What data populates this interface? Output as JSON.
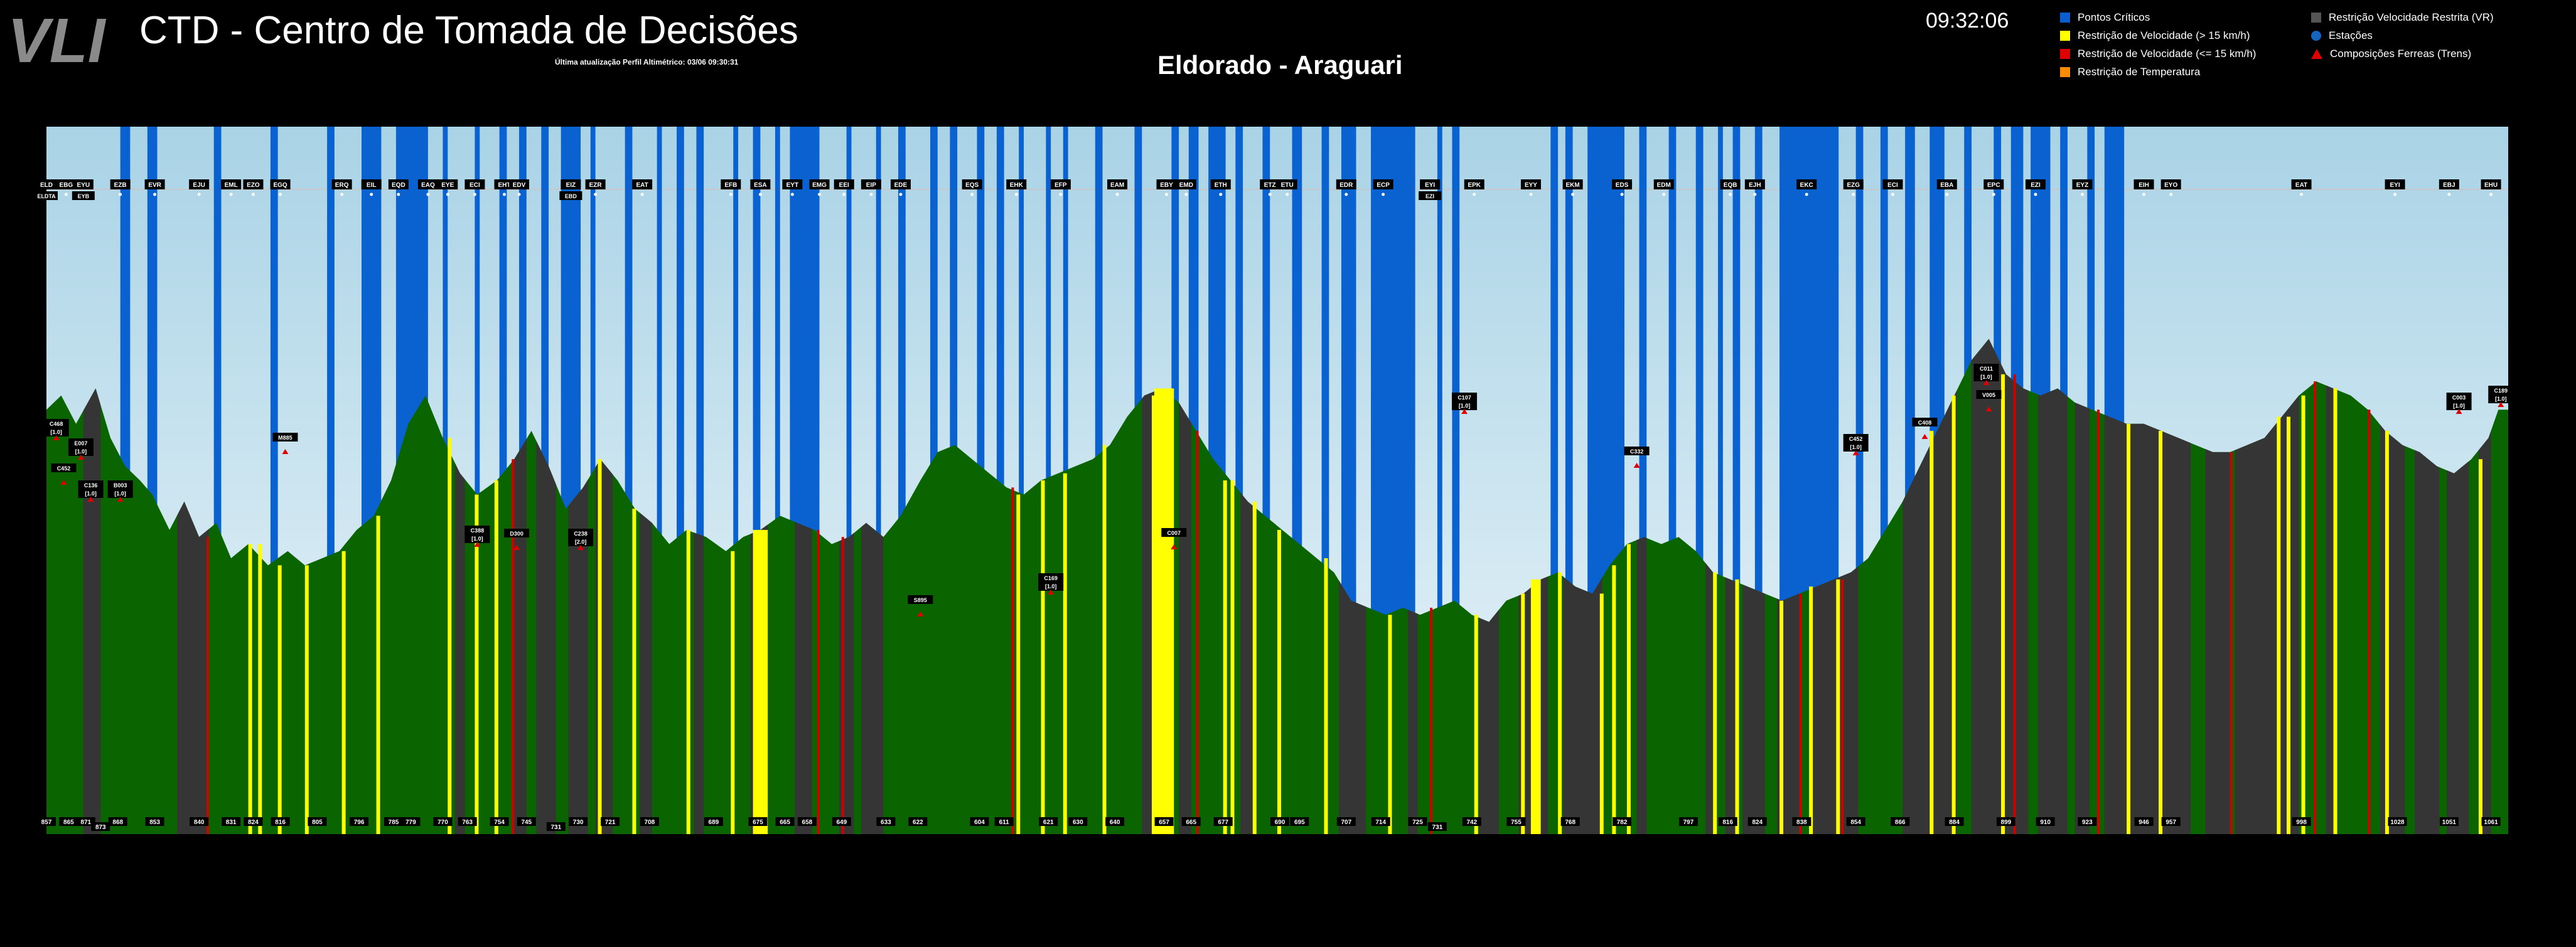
{
  "header": {
    "logo_text": "VLI",
    "title": "CTD - Centro de Tomada de Decisões",
    "last_update": "Última atualização Perfil Altimétrico: 03/06 09:30:31",
    "route": "Eldorado - Araguari",
    "clock": "09:32:06"
  },
  "legend": {
    "pontos_criticos": {
      "label": "Pontos Críticos",
      "color": "#0a5fd0"
    },
    "rv_maior15": {
      "label": "Restrição de Velocidade (> 15 km/h)",
      "color": "#ffff00"
    },
    "rv_menor15": {
      "label": "Restrição de Velocidade (<= 15 km/h)",
      "color": "#e00000"
    },
    "temperatura": {
      "label": "Restrição de Temperatura",
      "color": "#ff8c00"
    },
    "vel_restrita": {
      "label": "Restrição Velocidade Restrita (VR)",
      "color": "#555555"
    },
    "estacoes": {
      "label": "Estações",
      "color": "#1565c0"
    },
    "composicoes": {
      "label": "Composições Ferreas (Trens)",
      "color": "#e00000"
    }
  },
  "colors": {
    "terrain": "#0a6400",
    "restricted_terrain": "#353535",
    "sky_top": "#a9d3e6",
    "sky_bottom": "#e8f3f9",
    "critical": "#0a62d1",
    "speed_gt15": "#ffff00",
    "speed_le15": "#d00000"
  },
  "elevation_profile": {
    "description_km": "distance along route from 857 to 1061",
    "y_range": [
      0,
      100
    ],
    "points": [
      [
        0,
        60
      ],
      [
        0.6,
        62
      ],
      [
        1.2,
        58
      ],
      [
        2,
        63
      ],
      [
        2.6,
        56
      ],
      [
        3.2,
        52
      ],
      [
        3.8,
        50
      ],
      [
        4.3,
        48
      ],
      [
        5,
        43
      ],
      [
        5.6,
        47
      ],
      [
        6.2,
        42
      ],
      [
        6.9,
        44
      ],
      [
        7.5,
        39
      ],
      [
        8.2,
        41
      ],
      [
        9,
        38
      ],
      [
        9.8,
        40
      ],
      [
        10.5,
        38
      ],
      [
        11.2,
        39
      ],
      [
        11.9,
        40
      ],
      [
        12.6,
        43
      ],
      [
        13.3,
        45
      ],
      [
        14,
        50
      ],
      [
        14.7,
        58
      ],
      [
        15.4,
        62
      ],
      [
        16.1,
        56
      ],
      [
        16.8,
        51
      ],
      [
        17.5,
        48
      ],
      [
        18.3,
        50
      ],
      [
        19,
        53
      ],
      [
        19.7,
        57
      ],
      [
        20.4,
        52
      ],
      [
        21.1,
        46
      ],
      [
        21.8,
        49
      ],
      [
        22.5,
        53
      ],
      [
        23.2,
        50
      ],
      [
        23.9,
        46
      ],
      [
        24.6,
        44
      ],
      [
        25.3,
        41
      ],
      [
        26,
        43
      ],
      [
        26.8,
        42
      ],
      [
        27.6,
        40
      ],
      [
        28.3,
        42
      ],
      [
        29,
        43
      ],
      [
        29.8,
        45
      ],
      [
        30.5,
        44
      ],
      [
        31.2,
        43
      ],
      [
        31.9,
        41
      ],
      [
        32.6,
        42
      ],
      [
        33.3,
        44
      ],
      [
        34,
        42
      ],
      [
        34.7,
        45
      ],
      [
        35.5,
        50
      ],
      [
        36.2,
        54
      ],
      [
        36.9,
        55
      ],
      [
        37.6,
        53
      ],
      [
        38.3,
        51
      ],
      [
        39,
        49
      ],
      [
        39.7,
        48
      ],
      [
        40.4,
        50
      ],
      [
        41.1,
        51
      ],
      [
        41.8,
        52
      ],
      [
        42.5,
        53
      ],
      [
        43.2,
        55
      ],
      [
        43.9,
        59
      ],
      [
        44.6,
        62
      ],
      [
        45.3,
        63
      ],
      [
        46,
        61
      ],
      [
        46.7,
        57
      ],
      [
        47.4,
        53
      ],
      [
        48.1,
        50
      ],
      [
        48.8,
        47
      ],
      [
        49.5,
        45
      ],
      [
        50.2,
        43
      ],
      [
        50.9,
        41
      ],
      [
        51.6,
        39
      ],
      [
        52.3,
        37
      ],
      [
        53,
        33
      ],
      [
        53.7,
        32
      ],
      [
        54.4,
        31
      ],
      [
        55.1,
        32
      ],
      [
        55.8,
        31
      ],
      [
        56.5,
        32
      ],
      [
        57.2,
        33
      ],
      [
        57.9,
        31
      ],
      [
        58.6,
        30
      ],
      [
        59.3,
        33
      ],
      [
        60,
        34
      ],
      [
        60.7,
        36
      ],
      [
        61.4,
        37
      ],
      [
        62.1,
        35
      ],
      [
        62.8,
        34
      ],
      [
        63.5,
        38
      ],
      [
        64.2,
        41
      ],
      [
        64.9,
        42
      ],
      [
        65.6,
        41
      ],
      [
        66.3,
        42
      ],
      [
        67,
        40
      ],
      [
        67.7,
        37
      ],
      [
        68.4,
        36
      ],
      [
        69.1,
        35
      ],
      [
        69.8,
        34
      ],
      [
        70.5,
        33
      ],
      [
        71.2,
        34
      ],
      [
        71.9,
        35
      ],
      [
        72.6,
        36
      ],
      [
        73.3,
        37
      ],
      [
        74,
        39
      ],
      [
        74.7,
        43
      ],
      [
        75.4,
        47
      ],
      [
        76.1,
        52
      ],
      [
        76.8,
        57
      ],
      [
        77.5,
        62
      ],
      [
        78.2,
        67
      ],
      [
        78.9,
        70
      ],
      [
        79.6,
        65
      ],
      [
        80.3,
        63
      ],
      [
        81,
        62
      ],
      [
        81.7,
        63
      ],
      [
        82.4,
        61
      ],
      [
        83.1,
        60
      ],
      [
        83.8,
        59
      ],
      [
        84.5,
        58
      ],
      [
        85.2,
        58
      ],
      [
        85.9,
        57
      ],
      [
        86.6,
        56
      ],
      [
        87.3,
        55
      ],
      [
        88,
        54
      ],
      [
        88.7,
        54
      ],
      [
        89.4,
        55
      ],
      [
        90.1,
        56
      ],
      [
        90.8,
        59
      ],
      [
        91.5,
        62
      ],
      [
        92.2,
        64
      ],
      [
        92.9,
        63
      ],
      [
        93.6,
        62
      ],
      [
        94.3,
        60
      ],
      [
        95,
        57
      ],
      [
        95.7,
        55
      ],
      [
        96.4,
        54
      ],
      [
        97.1,
        52
      ],
      [
        97.8,
        51
      ],
      [
        98.5,
        53
      ],
      [
        99.2,
        56
      ],
      [
        99.6,
        60
      ],
      [
        100,
        60
      ]
    ]
  },
  "stations": [
    {
      "code": "ELD",
      "sub": "ELDTA"
    },
    {
      "code": "EBG"
    },
    {
      "code": "EYU",
      "sub": "EYB"
    },
    {
      "code": "EZB"
    },
    {
      "code": "EVR"
    },
    {
      "code": "EJU"
    },
    {
      "code": "EML"
    },
    {
      "code": "EZO"
    },
    {
      "code": "EGQ"
    },
    {
      "code": "ERQ"
    },
    {
      "code": "EIL"
    },
    {
      "code": "EQD"
    },
    {
      "code": "EAQ"
    },
    {
      "code": "EYE"
    },
    {
      "code": "ECI"
    },
    {
      "code": "EHT"
    },
    {
      "code": "EDV"
    },
    {
      "code": "EIZ",
      "sub": "EBD"
    },
    {
      "code": "EZR"
    },
    {
      "code": "EAT"
    },
    {
      "code": "EFB"
    },
    {
      "code": "ESA"
    },
    {
      "code": "EYT"
    },
    {
      "code": "EMG"
    },
    {
      "code": "EEI"
    },
    {
      "code": "EIP"
    },
    {
      "code": "EDE"
    },
    {
      "code": "EQS"
    },
    {
      "code": "EHK"
    },
    {
      "code": "EFP"
    },
    {
      "code": "EAM"
    },
    {
      "code": "EBY"
    },
    {
      "code": "EMD"
    },
    {
      "code": "ETH"
    },
    {
      "code": "ETZ"
    },
    {
      "code": "ETU"
    },
    {
      "code": "EDR"
    },
    {
      "code": "ECP"
    },
    {
      "code": "EYI",
      "sub": "EZI"
    },
    {
      "code": "EPK"
    },
    {
      "code": "EYY"
    },
    {
      "code": "EKM"
    },
    {
      "code": "EDS"
    },
    {
      "code": "EDM"
    },
    {
      "code": "EQB"
    },
    {
      "code": "EJH"
    },
    {
      "code": "EKC"
    },
    {
      "code": "EZG"
    },
    {
      "code": "ECI"
    },
    {
      "code": "EBA"
    },
    {
      "code": "EPC"
    },
    {
      "code": "EZI"
    },
    {
      "code": "EYZ"
    },
    {
      "code": "EIH"
    },
    {
      "code": "EYO"
    },
    {
      "code": "EAT"
    },
    {
      "code": "EYI"
    },
    {
      "code": "EBJ"
    },
    {
      "code": "EHU"
    }
  ],
  "km_markers": [
    "857",
    "865",
    "871",
    "873",
    "868",
    "853",
    "840",
    "831",
    "824",
    "816",
    "805",
    "796",
    "785",
    "779",
    "770",
    "763",
    "754",
    "745",
    "731",
    "730",
    "721",
    "708",
    "689",
    "675",
    "665",
    "658",
    "649",
    "633",
    "622",
    "604",
    "611",
    "621",
    "630",
    "640",
    "657",
    "665",
    "677",
    "690",
    "695",
    "707",
    "714",
    "725",
    "731",
    "742",
    "755",
    "768",
    "782",
    "797",
    "816",
    "824",
    "838",
    "854",
    "866",
    "884",
    "899",
    "910",
    "923",
    "946",
    "957",
    "998",
    "1028",
    "1051",
    "1061"
  ],
  "trains": [
    {
      "label": "C468",
      "sub": "[1.0]"
    },
    {
      "label": "C452"
    },
    {
      "label": "E007",
      "sub": "[1.0]"
    },
    {
      "label": "C136",
      "sub": "[1.0]"
    },
    {
      "label": "B003",
      "sub": "[1.0]"
    },
    {
      "label": "M885"
    },
    {
      "label": "C388",
      "sub": "[1.0]"
    },
    {
      "label": "D300"
    },
    {
      "label": "C238",
      "sub": "[2.0]"
    },
    {
      "label": "S895"
    },
    {
      "label": "C169",
      "sub": "[1.0]"
    },
    {
      "label": "C007"
    },
    {
      "label": "C107",
      "sub": "[1.0]"
    },
    {
      "label": "C332"
    },
    {
      "label": "C452",
      "sub": "[1.0]"
    },
    {
      "label": "C408"
    },
    {
      "label": "C011",
      "sub": "[1.0]"
    },
    {
      "label": "V005"
    },
    {
      "label": "C003",
      "sub": "[1.0]"
    },
    {
      "label": "C189",
      "sub": "[1.0]"
    }
  ]
}
